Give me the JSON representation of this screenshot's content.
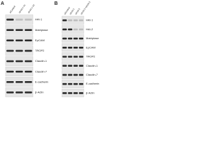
{
  "panels": [
    {
      "label": "A",
      "lanes": [
        "siControl",
        "siHAI-1 #1",
        "siHAI-1 #2"
      ],
      "rows": [
        "HAI-1",
        "Matriptase",
        "EpCAM",
        "TROP2",
        "Claudin-1",
        "Claudin-7",
        "E-cadherin",
        "β-Actin"
      ]
    },
    {
      "label": "B",
      "lanes": [
        "siControl",
        "siHAI-1",
        "siHAI-2",
        "siHAI-1+siHAI-2"
      ],
      "rows": [
        "HAI-1",
        "HAI-2",
        "Matriptase",
        "EpCAM",
        "TROP2",
        "Claudin-1",
        "Claudin-7",
        "E-cadherin",
        "β-Actin"
      ]
    }
  ]
}
